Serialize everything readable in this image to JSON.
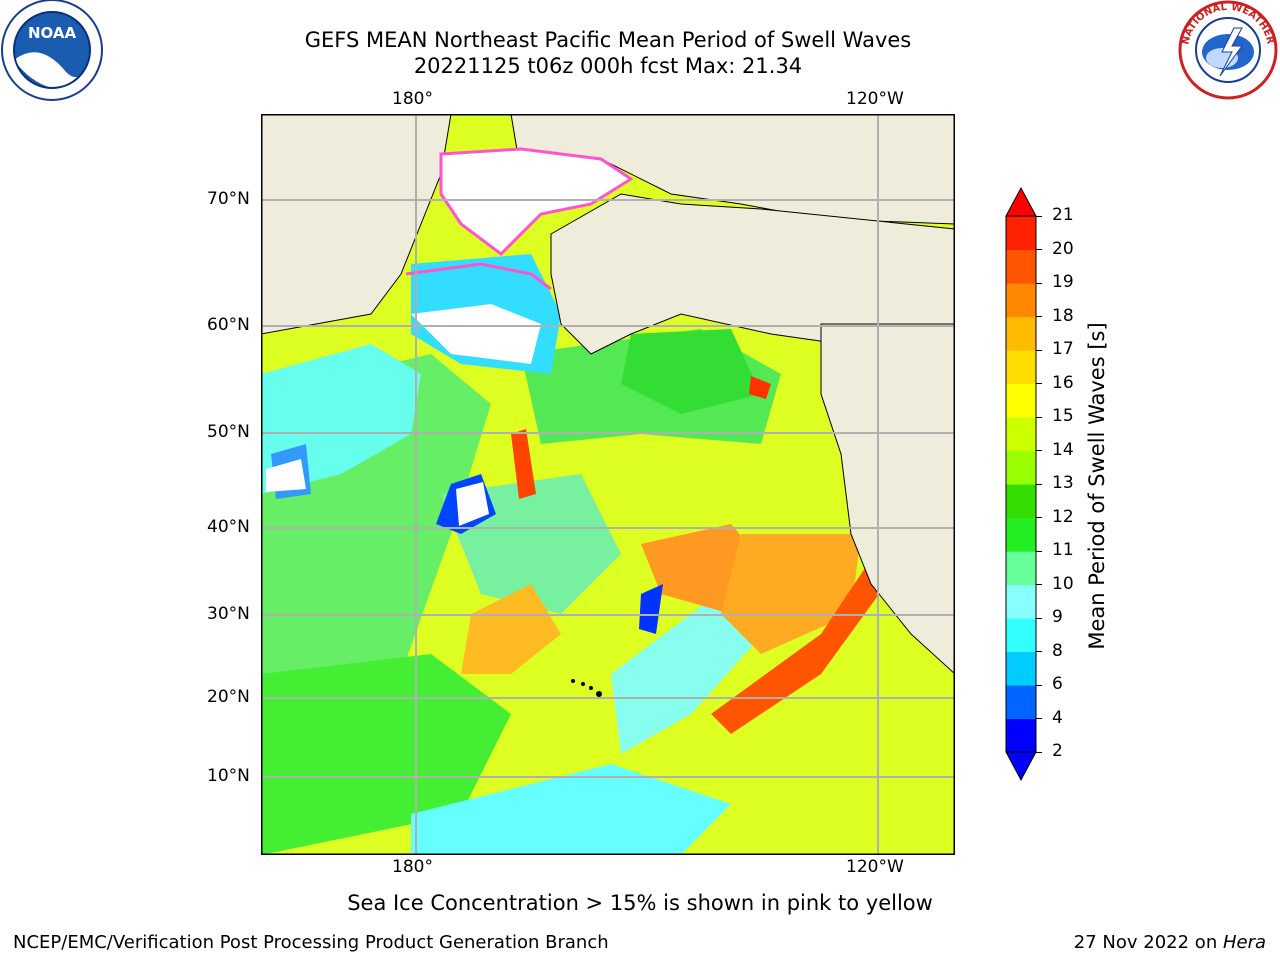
{
  "header": {
    "title_line1": "GEFS MEAN Northeast Pacific Mean Period of Swell Waves",
    "title_line2": "20221125 t06z 000h fcst   Max: 21.34"
  },
  "logos": {
    "left": {
      "icon": "noaa-logo",
      "text": "NOAA"
    },
    "right": {
      "icon": "nws-logo",
      "text": "NATIONAL WEATHER SERVICE"
    }
  },
  "map": {
    "lon_labels_top": [
      "180°",
      "120°W"
    ],
    "lon_labels_bottom": [
      "180°",
      "120°W"
    ],
    "lat_labels": [
      "70°N",
      "60°N",
      "50°N",
      "40°N",
      "30°N",
      "20°N",
      "10°N"
    ],
    "land_color": "#efecdc",
    "ice_color": "#ff55cc",
    "grid_color": "#b0b0b0"
  },
  "colorbar": {
    "label": "Mean Period of Swell Waves [s]",
    "ticks": [
      "2",
      "4",
      "6",
      "8",
      "9",
      "10",
      "11",
      "12",
      "13",
      "14",
      "15",
      "16",
      "17",
      "18",
      "19",
      "20",
      "21"
    ],
    "colors": [
      "#0000ff",
      "#0066ff",
      "#00ccff",
      "#33ffff",
      "#88ffff",
      "#66ff99",
      "#22ee22",
      "#33dd00",
      "#99ff00",
      "#ccff00",
      "#ffff00",
      "#ffdd00",
      "#ffbb00",
      "#ff8800",
      "#ff5500",
      "#ff2200",
      "#ff0000"
    ]
  },
  "caption": "Sea Ice Concentration > 15% is shown in pink to yellow",
  "footer": {
    "left": "NCEP/EMC/Verification Post Processing Product Generation Branch",
    "right_prefix": "27 Nov 2022 on ",
    "right_host": "Hera"
  }
}
